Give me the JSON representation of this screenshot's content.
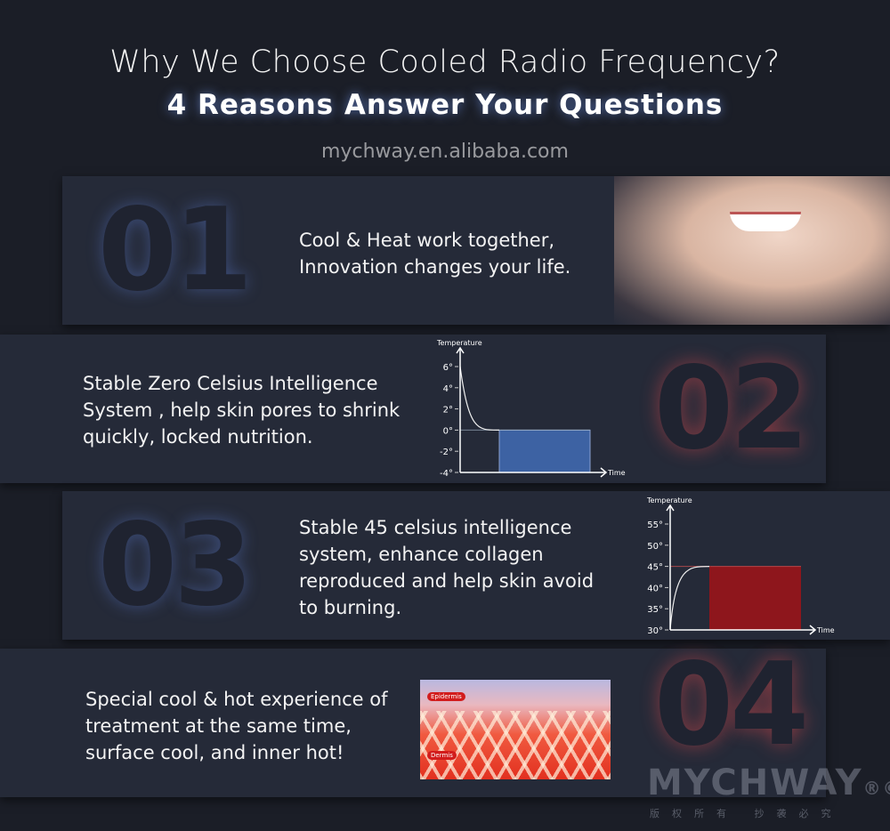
{
  "header": {
    "title": "Why We Choose Cooled Radio Frequency?",
    "subtitle": "4  Reasons Answer Your Questions"
  },
  "reasons": [
    {
      "number": "01",
      "text": [
        "Cool & Heat work together,",
        "Innovation changes your life."
      ]
    },
    {
      "number": "02",
      "text": [
        "Stable Zero Celsius Intelligence",
        "System , help skin pores to shrink",
        "quickly, locked nutrition."
      ]
    },
    {
      "number": "03",
      "text": [
        "Stable 45 celsius intelligence",
        "system, enhance collagen",
        "reproduced and help skin avoid",
        "to burning."
      ]
    },
    {
      "number": "04",
      "text": [
        "Special cool & hot experience of",
        "treatment at the same time,",
        "surface cool, and inner hot!"
      ]
    }
  ],
  "skin_image": {
    "labels": [
      "Epidermis",
      "Dermis"
    ]
  },
  "watermark": "mychway.en.alibaba.com",
  "logo": {
    "text": "MYCHWAY",
    "marks": "®©",
    "sub": "版权所有 抄袭必究"
  },
  "chart_data": [
    {
      "type": "area",
      "ylabel": "Temperature",
      "xlabel": "Time",
      "ticks": [
        "6°",
        "4°",
        "2°",
        "0°",
        "-2°",
        "-4°"
      ],
      "ylim": [
        -4,
        6
      ],
      "start_value": 6,
      "hold_value": 0,
      "color": "#3d62a3"
    },
    {
      "type": "area",
      "ylabel": "Temperature",
      "xlabel": "Time",
      "ticks": [
        "55°",
        "50°",
        "45°",
        "40°",
        "35°",
        "30°"
      ],
      "ylim": [
        30,
        55
      ],
      "start_value": 30,
      "hold_value": 45,
      "color": "#8e161c"
    }
  ]
}
